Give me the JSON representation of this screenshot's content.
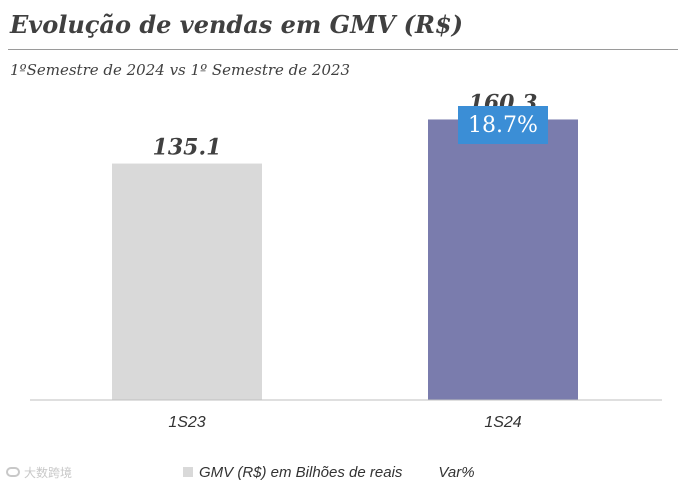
{
  "header": {
    "title": "Evolução de vendas em GMV (R$)",
    "subtitle": "1ºSemestre de 2024 vs 1º Semestre de 2023"
  },
  "chart_data": {
    "type": "bar",
    "categories": [
      "1S23",
      "1S24"
    ],
    "values": [
      135.1,
      160.3
    ],
    "value_labels": [
      "135.1",
      "160.3"
    ],
    "bar_colors": [
      "#d9d9d9",
      "#7a7cad"
    ],
    "variation_label": "18.7%",
    "variation_color": "#3b8ed6",
    "ylim": [
      0,
      200
    ],
    "grid": false,
    "legend_position": "bottom",
    "legend": [
      "GMV (R$) em Bilhões de reais",
      "Var%"
    ]
  },
  "watermark": {
    "icon": "watermark-logo-icon",
    "text": "大数跨境"
  }
}
